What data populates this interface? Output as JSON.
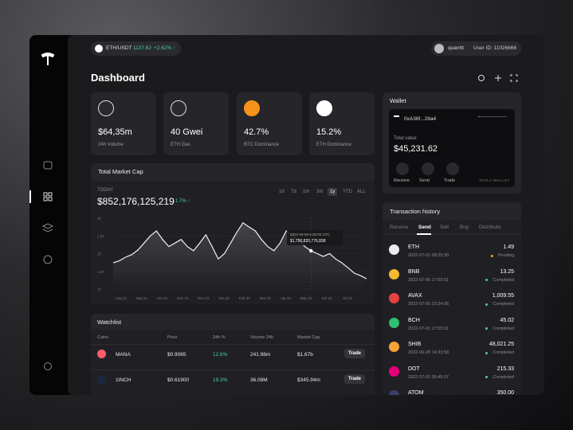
{
  "ticker": {
    "pair": "ETH/USDT",
    "price": "1137.62",
    "change": "+2.62% ↑"
  },
  "user": {
    "name": "quanht",
    "id": "User ID: 11026666"
  },
  "title": "Dashboard",
  "stats": [
    {
      "value": "$64,35m",
      "label": "24h Volume"
    },
    {
      "value": "40 Gwei",
      "label": "ETH Gas"
    },
    {
      "value": "42.7%",
      "label": "BTC Dominance"
    },
    {
      "value": "15.2%",
      "label": "ETH Dominance"
    }
  ],
  "market": {
    "title": "Total Market Cap",
    "period": "TODAY",
    "value": "$852,176,125,219",
    "change": "1.7% ↑",
    "ranges": [
      "1d",
      "7d",
      "1m",
      "3m",
      "1y",
      "YTD",
      "ALL"
    ],
    "active_range": 4,
    "chart": {
      "type": "line",
      "values": [
        1.74,
        1.8,
        1.9,
        1.97,
        2.1,
        2.3,
        2.5,
        2.64,
        2.4,
        2.2,
        2.3,
        2.4,
        2.2,
        2.08,
        2.3,
        2.53,
        2.2,
        1.85,
        2.0,
        2.3,
        2.6,
        2.87,
        2.75,
        2.64,
        2.4,
        2.2,
        2.08,
        2.3,
        2.64,
        2.5,
        2.4,
        2.2,
        2.08,
        2.0,
        1.92,
        2.0,
        1.85,
        1.74,
        1.6,
        1.45,
        1.38,
        1.29
      ],
      "ylim": [
        1,
        3
      ],
      "yticks": [
        {
          "value": 3,
          "label": "3T"
        },
        {
          "value": 2.5,
          "label": "2.5T"
        },
        {
          "value": 2,
          "label": "2T"
        },
        {
          "value": 1.5,
          "label": "1.5T"
        },
        {
          "value": 1,
          "label": "1T"
        }
      ],
      "xlabels": [
        "Aug 21",
        "Sep 21",
        "Oct 21",
        "Nov 21",
        "Dec 21",
        "Jan 22",
        "Feb 22",
        "Mar 22",
        "Apr 22",
        "May 22",
        "Jun 22",
        "Jul 22"
      ],
      "tooltip": {
        "time": "2022-05-06 6:30:00 UTC",
        "value": "$1,790,820,776,838"
      }
    }
  },
  "watchlist": {
    "title": "Watchlist",
    "columns": [
      "Coins",
      "Price",
      "24h %",
      "Volume 24h",
      "Market Cap"
    ],
    "rows": [
      [
        "MANA",
        "$0.9065",
        "12.6%",
        "241.98m",
        "$1,67b",
        "Trade"
      ],
      [
        "1INCH",
        "$0.61900",
        "19.3%",
        "36.08M",
        "$345.94m",
        "Trade"
      ]
    ]
  },
  "wallet": {
    "title": "Wallet",
    "address": "0xA36f...26a4",
    "total_label": "Total value",
    "total": "$45,231.62",
    "actions": [
      "Receive",
      "Send",
      "Trade"
    ],
    "brand": "TESLA WALLET"
  },
  "transactions": {
    "title": "Transaction history",
    "tabs": [
      "Receive",
      "Send",
      "Sell",
      "Buy",
      "Distribute"
    ],
    "active_tab": 1,
    "rows": [
      {
        "coin": "ETH",
        "time": "2022-07-01 08:25:30",
        "amount": "1.49",
        "status": "Pending"
      },
      {
        "coin": "BNB",
        "time": "2022-07-06 17:55:01",
        "amount": "13.25",
        "status": "Completed"
      },
      {
        "coin": "AVAX",
        "time": "2022-07-05 23:24:06",
        "amount": "1,009.55",
        "status": "Completed"
      },
      {
        "coin": "BCH",
        "time": "2022-07-01 17:55:01",
        "amount": "45.02",
        "status": "Completed"
      },
      {
        "coin": "SHIB",
        "time": "2022-06-28 14:33:58",
        "amount": "48,021.25",
        "status": "Completed"
      },
      {
        "coin": "DOT",
        "time": "2022-07-01 06:45:37",
        "amount": "215.33",
        "status": "Completed"
      },
      {
        "coin": "ATOM",
        "amount": "350.00"
      }
    ]
  }
}
